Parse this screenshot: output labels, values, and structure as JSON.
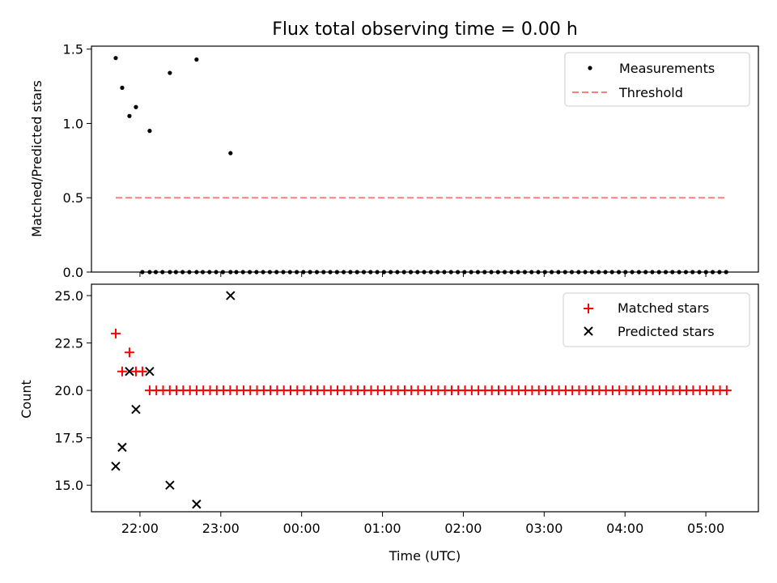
{
  "chart_data": [
    {
      "type": "scatter",
      "title": "Flux total observing time = 0.00 h",
      "xlabel": "",
      "ylabel": "Matched/Predicted stars",
      "ylim": [
        0,
        1.52
      ],
      "yticks": [
        "0.0",
        "0.5",
        "1.0",
        "1.5"
      ],
      "legend_position": "top-right",
      "series": [
        {
          "name": "Measurements",
          "kind": "points",
          "color": "#000000",
          "x": [
            21.7,
            21.78,
            21.87,
            21.95,
            22.12,
            22.37,
            22.7,
            23.12
          ],
          "y": [
            1.44,
            1.24,
            1.05,
            1.11,
            0.95,
            1.34,
            1.43,
            0.8
          ]
        },
        {
          "name": "Threshold",
          "kind": "dashed-line",
          "color": "#ff7f7f",
          "x": [
            21.7,
            29.25
          ],
          "y": [
            0.5,
            0.5
          ]
        }
      ],
      "zero_points": {
        "from": 22.03,
        "to": 29.3,
        "step": 0.083,
        "skip": [
          22.12,
          22.37,
          22.7,
          23.12
        ],
        "value": 0
      }
    },
    {
      "type": "scatter",
      "title": "",
      "xlabel": "Time (UTC)",
      "ylabel": "Count",
      "ylim": [
        13.6,
        25.6
      ],
      "yticks": [
        "15.0",
        "17.5",
        "20.0",
        "22.5",
        "25.0"
      ],
      "xticks": [
        "22:00",
        "23:00",
        "00:00",
        "01:00",
        "02:00",
        "03:00",
        "04:00",
        "05:00"
      ],
      "legend_position": "top-right",
      "series": [
        {
          "name": "Matched stars",
          "kind": "plus",
          "color": "#ff0000",
          "x": [
            21.7,
            21.78,
            21.87,
            21.95,
            22.03
          ],
          "y": [
            23,
            21,
            22,
            21,
            21
          ]
        },
        {
          "name": "Predicted stars",
          "kind": "cross",
          "color": "#000000",
          "x": [
            21.7,
            21.78,
            21.87,
            21.95,
            22.12,
            22.37,
            22.7,
            23.12
          ],
          "y": [
            16,
            17,
            21,
            19,
            21,
            15,
            14,
            25
          ]
        }
      ],
      "constant_matched": {
        "from": 22.12,
        "to": 29.3,
        "step": 0.083,
        "value": 20
      }
    }
  ]
}
